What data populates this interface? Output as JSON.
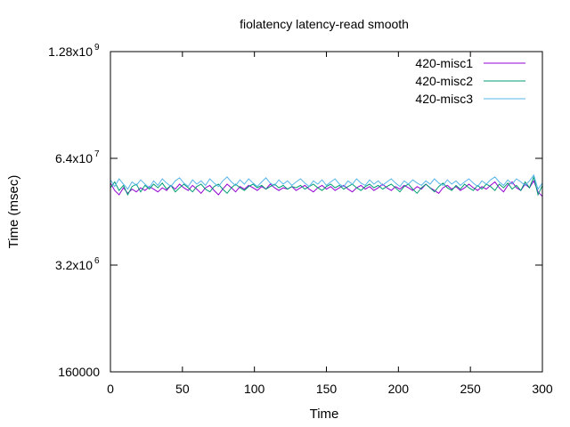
{
  "chart_data": {
    "type": "line",
    "title": "fiolatency latency-read smooth",
    "xlabel": "Time",
    "ylabel": "Time (msec)",
    "xlim": [
      0,
      300
    ],
    "ylim": [
      160000,
      1280000000
    ],
    "y_scale": "log",
    "grid": false,
    "legend_position": "top-right",
    "x_ticks": [
      0,
      50,
      100,
      150,
      200,
      250,
      300
    ],
    "x_tick_labels": [
      "0",
      "50",
      "100",
      "150",
      "200",
      "250",
      "300"
    ],
    "y_ticks": [
      {
        "value": 160000,
        "mantissa": "160000",
        "exponent": ""
      },
      {
        "value": 3200000,
        "mantissa": "3.2x10",
        "exponent": "6"
      },
      {
        "value": 64000000,
        "mantissa": "6.4x10",
        "exponent": "7"
      },
      {
        "value": 1280000000,
        "mantissa": "1.28x10",
        "exponent": "9"
      }
    ],
    "series": [
      {
        "name": "420-misc1",
        "color": "#9400d3",
        "x": [
          0,
          3,
          6,
          9,
          12,
          15,
          18,
          21,
          24,
          27,
          30,
          33,
          36,
          39,
          42,
          45,
          48,
          51,
          54,
          57,
          60,
          63,
          66,
          69,
          72,
          75,
          78,
          81,
          84,
          87,
          90,
          93,
          96,
          99,
          102,
          105,
          108,
          111,
          114,
          117,
          120,
          123,
          126,
          129,
          132,
          135,
          138,
          141,
          144,
          147,
          150,
          153,
          156,
          159,
          162,
          165,
          168,
          171,
          174,
          177,
          180,
          183,
          186,
          189,
          192,
          195,
          198,
          201,
          204,
          207,
          210,
          213,
          216,
          219,
          222,
          225,
          228,
          231,
          234,
          237,
          240,
          243,
          246,
          249,
          252,
          255,
          258,
          261,
          264,
          267,
          270,
          273,
          276,
          279,
          282,
          285,
          288,
          291,
          294,
          297,
          300
        ],
        "y": [
          32000000,
          26000000,
          23000000,
          28000000,
          24000000,
          27000000,
          25000000,
          28000000,
          26000000,
          29000000,
          27000000,
          25000000,
          28000000,
          26000000,
          30000000,
          27000000,
          31000000,
          28000000,
          26000000,
          30000000,
          27000000,
          24000000,
          28000000,
          30000000,
          26000000,
          23000000,
          27000000,
          31000000,
          28000000,
          25000000,
          29000000,
          27000000,
          30000000,
          28000000,
          26000000,
          29000000,
          27000000,
          31000000,
          28000000,
          26000000,
          28000000,
          27000000,
          29000000,
          26000000,
          28000000,
          30000000,
          27000000,
          25000000,
          28000000,
          30000000,
          27000000,
          29000000,
          26000000,
          28000000,
          30000000,
          27000000,
          25000000,
          28000000,
          30000000,
          27000000,
          29000000,
          26000000,
          28000000,
          31000000,
          28000000,
          26000000,
          29000000,
          27000000,
          30000000,
          28000000,
          26000000,
          29000000,
          27000000,
          31000000,
          28000000,
          26000000,
          24000000,
          28000000,
          30000000,
          27000000,
          29000000,
          26000000,
          28000000,
          31000000,
          28000000,
          26000000,
          29000000,
          27000000,
          30000000,
          33000000,
          28000000,
          25000000,
          30000000,
          33000000,
          28000000,
          26000000,
          31000000,
          28000000,
          34000000,
          25000000,
          22000000
        ]
      },
      {
        "name": "420-misc2",
        "color": "#009e73",
        "x": [
          0,
          3,
          6,
          9,
          12,
          15,
          18,
          21,
          24,
          27,
          30,
          33,
          36,
          39,
          42,
          45,
          48,
          51,
          54,
          57,
          60,
          63,
          66,
          69,
          72,
          75,
          78,
          81,
          84,
          87,
          90,
          93,
          96,
          99,
          102,
          105,
          108,
          111,
          114,
          117,
          120,
          123,
          126,
          129,
          132,
          135,
          138,
          141,
          144,
          147,
          150,
          153,
          156,
          159,
          162,
          165,
          168,
          171,
          174,
          177,
          180,
          183,
          186,
          189,
          192,
          195,
          198,
          201,
          204,
          207,
          210,
          213,
          216,
          219,
          222,
          225,
          228,
          231,
          234,
          237,
          240,
          243,
          246,
          249,
          252,
          255,
          258,
          261,
          264,
          267,
          270,
          273,
          276,
          279,
          282,
          285,
          288,
          291,
          294,
          297,
          300
        ],
        "y": [
          28000000,
          33000000,
          26000000,
          30000000,
          23000000,
          29000000,
          31000000,
          25000000,
          30000000,
          27000000,
          31000000,
          28000000,
          32000000,
          27000000,
          30000000,
          25000000,
          28000000,
          31000000,
          28000000,
          25000000,
          29000000,
          31000000,
          27000000,
          25000000,
          29000000,
          31000000,
          27000000,
          24000000,
          28000000,
          31000000,
          28000000,
          26000000,
          29000000,
          31000000,
          28000000,
          30000000,
          27000000,
          29000000,
          31000000,
          28000000,
          30000000,
          27000000,
          29000000,
          28000000,
          30000000,
          27000000,
          29000000,
          31000000,
          28000000,
          26000000,
          29000000,
          31000000,
          28000000,
          30000000,
          27000000,
          29000000,
          31000000,
          28000000,
          26000000,
          29000000,
          31000000,
          28000000,
          30000000,
          27000000,
          29000000,
          31000000,
          28000000,
          25000000,
          29000000,
          31000000,
          27000000,
          24000000,
          28000000,
          31000000,
          28000000,
          25000000,
          29000000,
          32000000,
          28000000,
          26000000,
          30000000,
          27000000,
          31000000,
          28000000,
          26000000,
          30000000,
          27000000,
          31000000,
          29000000,
          26000000,
          31000000,
          28000000,
          32000000,
          27000000,
          30000000,
          26000000,
          33000000,
          28000000,
          38000000,
          23000000,
          30000000
        ]
      },
      {
        "name": "420-misc3",
        "color": "#56b4e9",
        "x": [
          0,
          3,
          6,
          9,
          12,
          15,
          18,
          21,
          24,
          27,
          30,
          33,
          36,
          39,
          42,
          45,
          48,
          51,
          54,
          57,
          60,
          63,
          66,
          69,
          72,
          75,
          78,
          81,
          84,
          87,
          90,
          93,
          96,
          99,
          102,
          105,
          108,
          111,
          114,
          117,
          120,
          123,
          126,
          129,
          132,
          135,
          138,
          141,
          144,
          147,
          150,
          153,
          156,
          159,
          162,
          165,
          168,
          171,
          174,
          177,
          180,
          183,
          186,
          189,
          192,
          195,
          198,
          201,
          204,
          207,
          210,
          213,
          216,
          219,
          222,
          225,
          228,
          231,
          234,
          237,
          240,
          243,
          246,
          249,
          252,
          255,
          258,
          261,
          264,
          267,
          270,
          273,
          276,
          279,
          282,
          285,
          288,
          291,
          294,
          297,
          300
        ],
        "y": [
          35000000,
          29000000,
          36000000,
          31000000,
          27000000,
          33000000,
          30000000,
          35000000,
          31000000,
          28000000,
          34000000,
          30000000,
          36000000,
          32000000,
          29000000,
          34000000,
          37000000,
          32000000,
          29000000,
          35000000,
          31000000,
          34000000,
          30000000,
          36000000,
          32000000,
          29000000,
          34000000,
          38000000,
          33000000,
          30000000,
          35000000,
          31000000,
          36000000,
          32000000,
          29000000,
          33000000,
          37000000,
          32000000,
          30000000,
          35000000,
          31000000,
          34000000,
          30000000,
          33000000,
          36000000,
          32000000,
          29000000,
          34000000,
          31000000,
          35000000,
          30000000,
          33000000,
          36000000,
          31000000,
          29000000,
          34000000,
          31000000,
          36000000,
          32000000,
          30000000,
          35000000,
          31000000,
          34000000,
          30000000,
          33000000,
          36000000,
          32000000,
          29000000,
          34000000,
          31000000,
          35000000,
          32000000,
          30000000,
          34000000,
          31000000,
          36000000,
          32000000,
          30000000,
          35000000,
          31000000,
          34000000,
          30000000,
          33000000,
          36000000,
          32000000,
          29000000,
          34000000,
          31000000,
          35000000,
          38000000,
          33000000,
          30000000,
          35000000,
          31000000,
          36000000,
          33000000,
          30000000,
          34000000,
          40000000,
          27000000,
          32000000
        ]
      }
    ]
  }
}
